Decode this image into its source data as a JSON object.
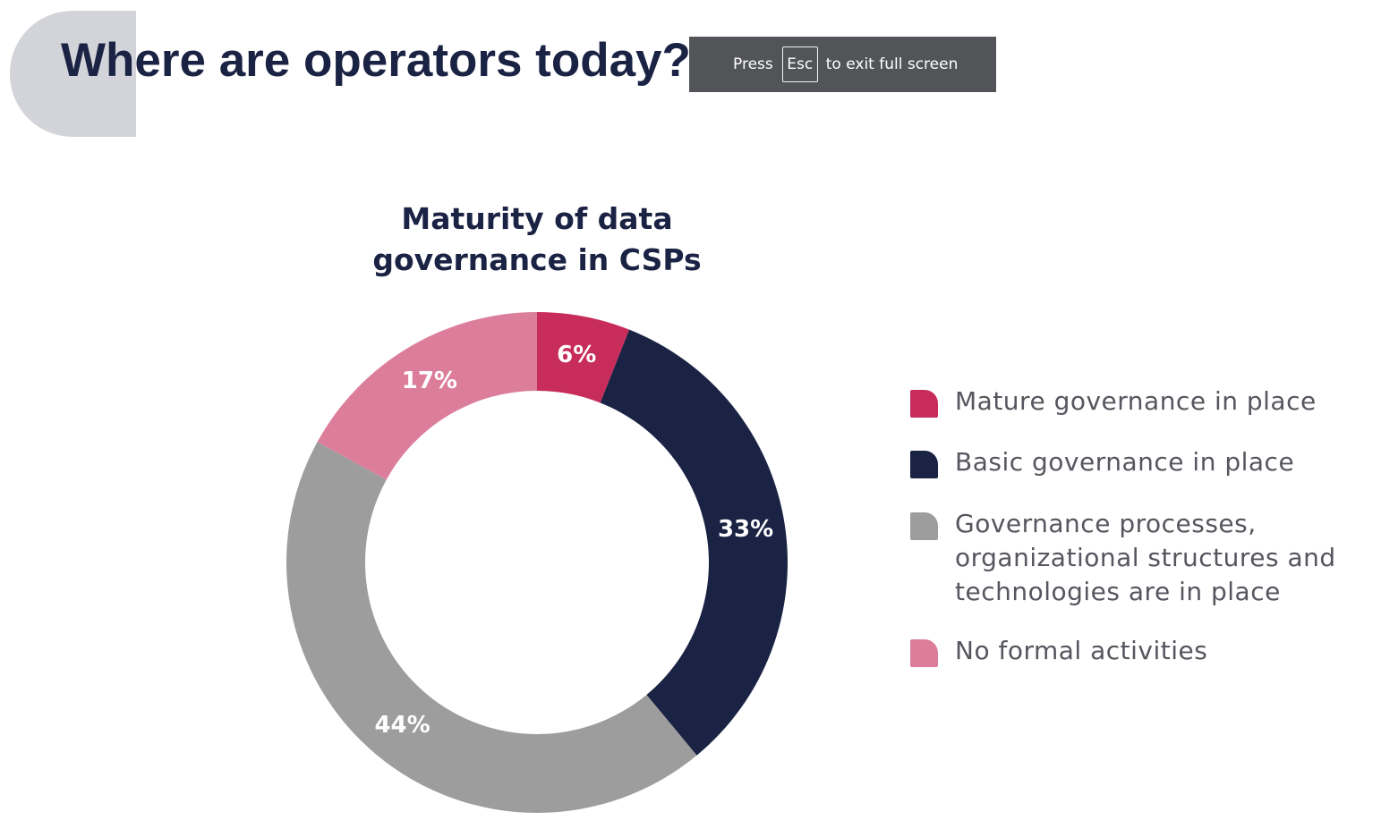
{
  "slide": {
    "title": "Where are operators today?"
  },
  "fullscreen_notice": {
    "press": "Press",
    "key": "Esc",
    "message": "to exit full screen"
  },
  "chart_data": {
    "type": "pie",
    "style": "donut",
    "title": "Maturity of data governance in CSPs",
    "title_lines": [
      "Maturity of data",
      "governance in CSPs"
    ],
    "legend_position": "right",
    "categories": [
      "Mature governance in place",
      "Basic governance in place",
      "Governance processes, organizational structures and technologies are in place",
      "No formal activities"
    ],
    "values": [
      6,
      33,
      44,
      17
    ],
    "data_labels": [
      "6%",
      "33%",
      "44%",
      "17%"
    ],
    "legend_lines": [
      [
        "Mature governance in place"
      ],
      [
        "Basic governance in place"
      ],
      [
        "Governance processes,",
        "organizational structures and",
        "technologies are in place"
      ],
      [
        "No formal activities"
      ]
    ],
    "colors": [
      "#c72c5b",
      "#1b2344",
      "#9d9d9d",
      "#dc7e9b"
    ]
  }
}
